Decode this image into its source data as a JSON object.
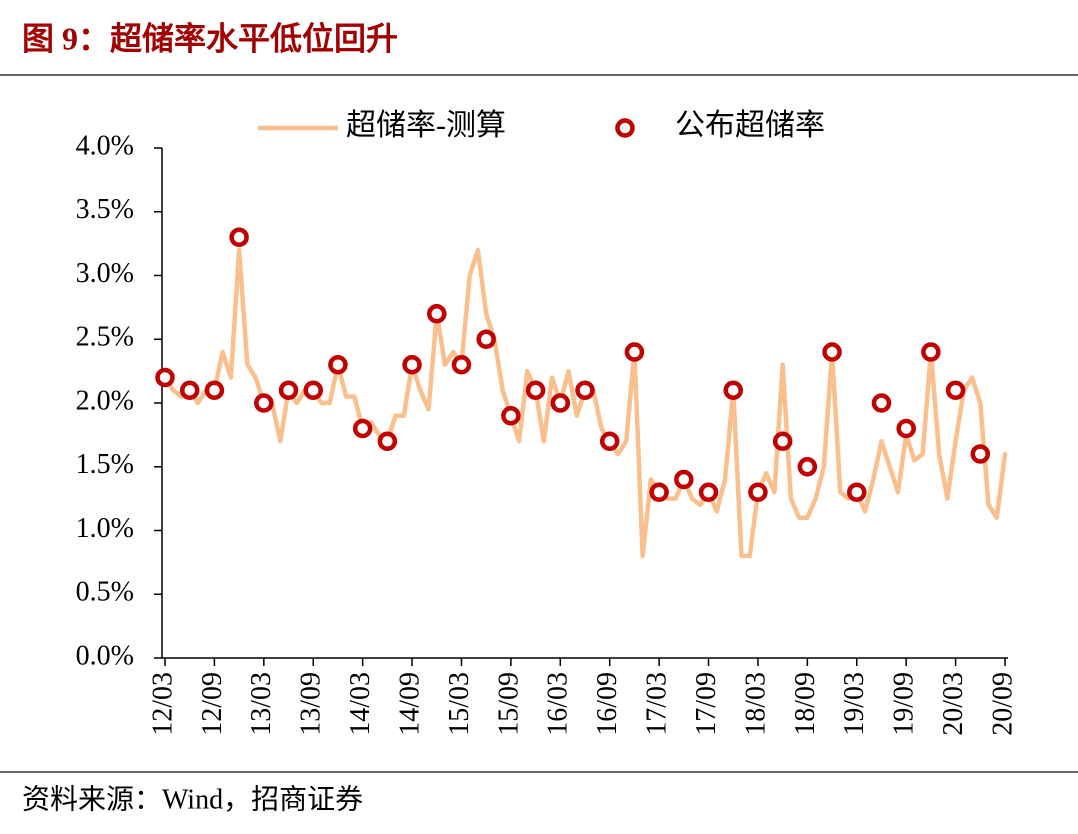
{
  "chart_data": {
    "type": "line",
    "title": "图 9：超储率水平低位回升",
    "source": "资料来源：Wind，招商证券",
    "x": [
      "12/03",
      "12/04",
      "12/05",
      "12/06",
      "12/07",
      "12/08",
      "12/09",
      "12/10",
      "12/11",
      "12/12",
      "13/01",
      "13/02",
      "13/03",
      "13/04",
      "13/05",
      "13/06",
      "13/07",
      "13/08",
      "13/09",
      "13/10",
      "13/11",
      "13/12",
      "14/01",
      "14/02",
      "14/03",
      "14/04",
      "14/05",
      "14/06",
      "14/07",
      "14/08",
      "14/09",
      "14/10",
      "14/11",
      "14/12",
      "15/01",
      "15/02",
      "15/03",
      "15/04",
      "15/05",
      "15/06",
      "15/07",
      "15/08",
      "15/09",
      "15/10",
      "15/11",
      "15/12",
      "16/01",
      "16/02",
      "16/03",
      "16/04",
      "16/05",
      "16/06",
      "16/07",
      "16/08",
      "16/09",
      "16/10",
      "16/11",
      "16/12",
      "17/01",
      "17/02",
      "17/03",
      "17/04",
      "17/05",
      "17/06",
      "17/07",
      "17/08",
      "17/09",
      "17/10",
      "17/11",
      "17/12",
      "18/01",
      "18/02",
      "18/03",
      "18/04",
      "18/05",
      "18/06",
      "18/07",
      "18/08",
      "18/09",
      "18/10",
      "18/11",
      "18/12",
      "19/01",
      "19/02",
      "19/03",
      "19/04",
      "19/05",
      "19/06",
      "19/07",
      "19/08",
      "19/09",
      "19/10",
      "19/11",
      "19/12",
      "20/01",
      "20/02",
      "20/03",
      "20/04",
      "20/05",
      "20/06",
      "20/07",
      "20/08",
      "20/09"
    ],
    "xticks": [
      "12/03",
      "12/09",
      "13/03",
      "13/09",
      "14/03",
      "14/09",
      "15/03",
      "15/09",
      "16/03",
      "16/09",
      "17/03",
      "17/09",
      "18/03",
      "18/09",
      "19/03",
      "19/09",
      "20/03",
      "20/09"
    ],
    "ylim": [
      0,
      4
    ],
    "yticks": [
      {
        "value": 0,
        "label": "0.0%"
      },
      {
        "value": 0.5,
        "label": "0.5%"
      },
      {
        "value": 1,
        "label": "1.0%"
      },
      {
        "value": 1.5,
        "label": "1.5%"
      },
      {
        "value": 2,
        "label": "2.0%"
      },
      {
        "value": 2.5,
        "label": "2.5%"
      },
      {
        "value": 3,
        "label": "3.0%"
      },
      {
        "value": 3.5,
        "label": "3.5%"
      },
      {
        "value": 4,
        "label": "4.0%"
      }
    ],
    "series": [
      {
        "name": "超储率-测算",
        "color": "#f9c08e",
        "style": "line",
        "values": [
          2.2,
          2.1,
          2.05,
          2.1,
          2.0,
          2.1,
          2.1,
          2.4,
          2.2,
          3.2,
          2.3,
          2.2,
          2.0,
          2.0,
          1.7,
          2.1,
          2.0,
          2.1,
          2.1,
          2.0,
          2.0,
          2.3,
          2.05,
          2.05,
          1.8,
          1.85,
          1.75,
          1.7,
          1.9,
          1.9,
          2.3,
          2.1,
          1.95,
          2.7,
          2.3,
          2.4,
          2.3,
          3.0,
          3.2,
          2.7,
          2.5,
          2.1,
          1.9,
          1.7,
          2.25,
          2.1,
          1.7,
          2.2,
          2.0,
          2.25,
          1.9,
          2.1,
          2.1,
          1.8,
          1.7,
          1.6,
          1.7,
          2.4,
          0.8,
          1.4,
          1.3,
          1.25,
          1.25,
          1.4,
          1.25,
          1.2,
          1.3,
          1.15,
          1.4,
          2.1,
          0.8,
          0.8,
          1.3,
          1.45,
          1.3,
          2.3,
          1.25,
          1.1,
          1.1,
          1.25,
          1.5,
          2.4,
          1.3,
          1.25,
          1.3,
          1.15,
          1.4,
          1.7,
          1.5,
          1.3,
          1.75,
          1.55,
          1.6,
          2.4,
          1.6,
          1.25,
          1.7,
          2.1,
          2.2,
          2.0,
          1.2,
          1.1,
          1.6
        ]
      },
      {
        "name": "公布超储率",
        "color": "#c00000",
        "style": "marker",
        "values": [
          2.2,
          null,
          null,
          2.1,
          null,
          null,
          2.1,
          null,
          null,
          3.3,
          null,
          null,
          2.0,
          null,
          null,
          2.1,
          null,
          null,
          2.1,
          null,
          null,
          2.3,
          null,
          null,
          1.8,
          null,
          null,
          1.7,
          null,
          null,
          2.3,
          null,
          null,
          2.7,
          null,
          null,
          2.3,
          null,
          null,
          2.5,
          null,
          null,
          1.9,
          null,
          null,
          2.1,
          null,
          null,
          2.0,
          null,
          null,
          2.1,
          null,
          null,
          1.7,
          null,
          null,
          2.4,
          null,
          null,
          1.3,
          null,
          null,
          1.4,
          null,
          null,
          1.3,
          null,
          null,
          2.1,
          null,
          null,
          1.3,
          null,
          null,
          1.7,
          null,
          null,
          1.5,
          null,
          null,
          2.4,
          null,
          null,
          1.3,
          null,
          null,
          2.0,
          null,
          null,
          1.8,
          null,
          null,
          2.4,
          null,
          null,
          2.1,
          null,
          null,
          1.6,
          null,
          null,
          null
        ]
      }
    ]
  }
}
